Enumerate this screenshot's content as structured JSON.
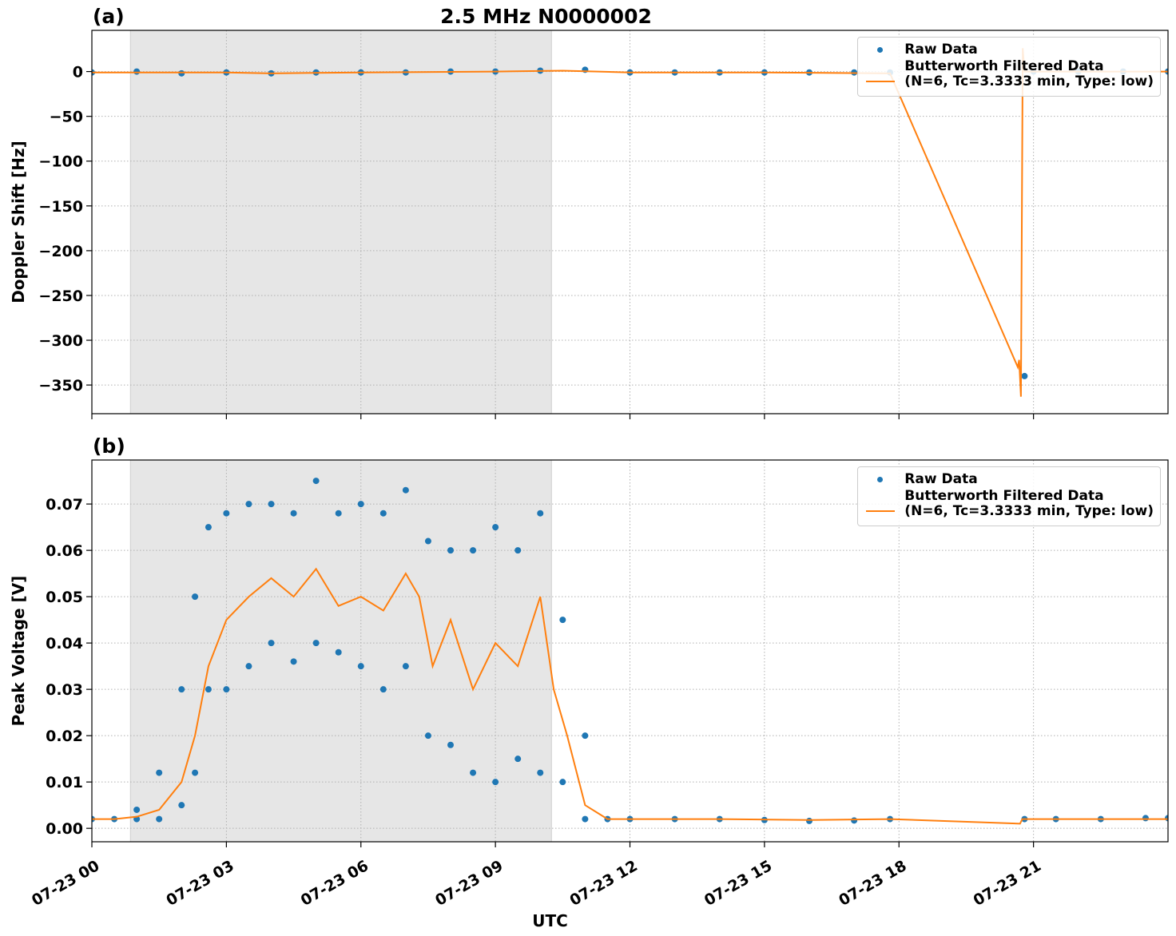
{
  "chart_data": [
    {
      "type": "timeseries",
      "title": "2.5 MHz N0000002",
      "panel_label": "(a)",
      "ylabel": "Doppler Shift [Hz]",
      "xlim": [
        0,
        24
      ],
      "xticks": [
        0,
        3,
        6,
        9,
        12,
        15,
        18,
        21
      ],
      "ylim": [
        -382,
        46
      ],
      "yticks": [
        {
          "value": -350,
          "label": "−350"
        },
        {
          "value": -300,
          "label": "−300"
        },
        {
          "value": -250,
          "label": "−250"
        },
        {
          "value": -200,
          "label": "−200"
        },
        {
          "value": -150,
          "label": "−150"
        },
        {
          "value": -100,
          "label": "−100"
        },
        {
          "value": -50,
          "label": "−50"
        },
        0
      ],
      "grid": true,
      "legend": "upper right",
      "shaded_xspan": [
        0.86,
        10.25
      ],
      "shade_color": "#e6e6e6",
      "series": [
        {
          "name": "Raw Data",
          "mode": "markers",
          "color": "#1f77b4",
          "x": [
            0,
            1,
            2,
            3,
            4,
            5,
            6,
            7,
            8,
            9,
            10,
            11,
            12,
            13,
            14,
            15,
            16,
            17,
            17.8,
            20.8,
            21,
            22,
            23,
            24
          ],
          "values": [
            -1,
            0,
            -2,
            -1,
            -2,
            -1,
            -1,
            -1,
            0,
            0,
            1,
            2,
            -1,
            -1,
            -1,
            -1,
            -1,
            -1,
            -1,
            -340,
            0,
            0,
            0,
            0
          ]
        },
        {
          "name": "Butterworth Filtered Data\n(N=6, Tc=3.3333 min, Type: low)",
          "mode": "line",
          "color": "#ff7f0e",
          "x": [
            0,
            3,
            4,
            6,
            9,
            10.5,
            12,
            15,
            17.8,
            20.65,
            20.68,
            20.72,
            20.76,
            20.8,
            21,
            24
          ],
          "values": [
            -1,
            -1,
            -2,
            -1,
            0,
            1,
            -1,
            -1,
            -2,
            -330,
            -322,
            -363,
            26,
            0,
            0,
            0
          ]
        }
      ]
    },
    {
      "type": "timeseries",
      "panel_label": "(b)",
      "ylabel": "Peak Voltage [V]",
      "xlabel": "UTC",
      "xlim": [
        0,
        24
      ],
      "xticks": [
        {
          "value": 0,
          "label": "07-23 00"
        },
        {
          "value": 3,
          "label": "07-23 03"
        },
        {
          "value": 6,
          "label": "07-23 06"
        },
        {
          "value": 9,
          "label": "07-23 09"
        },
        {
          "value": 12,
          "label": "07-23 12"
        },
        {
          "value": 15,
          "label": "07-23 15"
        },
        {
          "value": 18,
          "label": "07-23 18"
        },
        {
          "value": 21,
          "label": "07-23 21"
        }
      ],
      "ylim": [
        -0.0029,
        0.0795
      ],
      "yticks": [
        {
          "value": 0,
          "label": "0.00"
        },
        0.01,
        0.02,
        0.03,
        0.04,
        0.05,
        0.06,
        0.07
      ],
      "grid": true,
      "legend": "upper right",
      "shaded_xspan": [
        0.86,
        10.25
      ],
      "shade_color": "#e6e6e6",
      "series": [
        {
          "name": "Raw Data",
          "mode": "markers",
          "color": "#1f77b4",
          "x": [
            0,
            0.5,
            1,
            1,
            1.5,
            1.5,
            2,
            2,
            2.3,
            2.3,
            2.6,
            2.6,
            3,
            3,
            3.5,
            3.5,
            4,
            4,
            4.5,
            4.5,
            5,
            5,
            5.5,
            5.5,
            6,
            6,
            6.5,
            6.5,
            7,
            7,
            7.5,
            7.5,
            8,
            8,
            8.5,
            8.5,
            9,
            9,
            9.5,
            9.5,
            10,
            10,
            10.5,
            10.5,
            11,
            11,
            11.5,
            12,
            13,
            14,
            15,
            16,
            17,
            17.8,
            20.8,
            21.5,
            22.5,
            23.5,
            24
          ],
          "values": [
            0.002,
            0.002,
            0.004,
            0.002,
            0.012,
            0.002,
            0.03,
            0.005,
            0.05,
            0.012,
            0.065,
            0.03,
            0.068,
            0.03,
            0.07,
            0.035,
            0.07,
            0.04,
            0.068,
            0.036,
            0.075,
            0.04,
            0.068,
            0.038,
            0.07,
            0.035,
            0.068,
            0.03,
            0.073,
            0.035,
            0.062,
            0.02,
            0.06,
            0.018,
            0.06,
            0.012,
            0.065,
            0.01,
            0.06,
            0.015,
            0.068,
            0.012,
            0.045,
            0.01,
            0.02,
            0.002,
            0.002,
            0.002,
            0.002,
            0.002,
            0.0018,
            0.0016,
            0.0017,
            0.002,
            0.002,
            0.002,
            0.002,
            0.0022,
            0.0022
          ]
        },
        {
          "name": "Butterworth Filtered Data\n(N=6, Tc=3.3333 min, Type: low)",
          "mode": "line",
          "color": "#ff7f0e",
          "x": [
            0,
            0.5,
            1,
            1.5,
            2,
            2.3,
            2.6,
            3,
            3.5,
            4,
            4.5,
            5,
            5.5,
            6,
            6.5,
            7,
            7.3,
            7.6,
            8,
            8.5,
            9,
            9.5,
            10,
            10.3,
            10.6,
            11,
            11.5,
            12,
            14,
            16,
            17.8,
            20.7,
            20.75,
            22,
            24
          ],
          "values": [
            0.002,
            0.002,
            0.0025,
            0.004,
            0.01,
            0.02,
            0.035,
            0.045,
            0.05,
            0.054,
            0.05,
            0.056,
            0.048,
            0.05,
            0.047,
            0.055,
            0.05,
            0.035,
            0.045,
            0.03,
            0.04,
            0.035,
            0.05,
            0.03,
            0.02,
            0.005,
            0.002,
            0.002,
            0.002,
            0.0018,
            0.002,
            0.001,
            0.002,
            0.002,
            0.002
          ]
        }
      ]
    }
  ]
}
